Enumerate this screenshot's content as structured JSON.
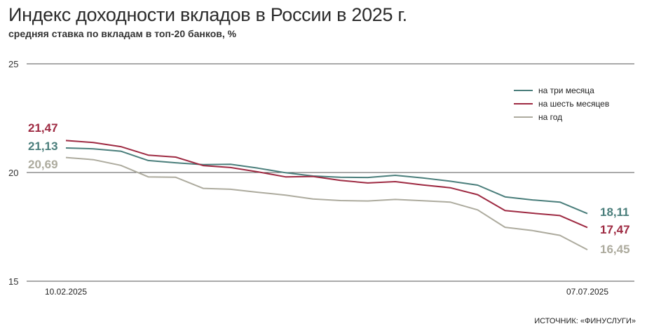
{
  "chart_data": {
    "type": "line",
    "title": "Индекс доходности вкладов в России в 2025 г.",
    "subtitle": "средняя ставка по вкладам в топ-20 банков, %",
    "source": "ИСТОЧНИК: «ФИНУСЛУГИ»",
    "ylim": [
      15,
      25
    ],
    "yticks": [
      "25",
      "20",
      "15"
    ],
    "x_start_label": "10.02.2025",
    "x_end_label": "07.07.2025",
    "legend_position": "top-right",
    "grid": true,
    "series": [
      {
        "name": "на три месяца",
        "color": "#4a7e7b",
        "start_label": "21,13",
        "end_label": "18,11",
        "values": [
          21.13,
          21.09,
          20.98,
          20.55,
          20.45,
          20.36,
          20.38,
          20.2,
          19.99,
          19.84,
          19.78,
          19.77,
          19.87,
          19.75,
          19.6,
          19.42,
          18.88,
          18.74,
          18.64,
          18.11
        ]
      },
      {
        "name": "на шесть месяцев",
        "color": "#9e2a42",
        "start_label": "21,47",
        "end_label": "17,47",
        "values": [
          21.47,
          21.38,
          21.19,
          20.8,
          20.71,
          20.32,
          20.23,
          20.03,
          19.8,
          19.82,
          19.64,
          19.52,
          19.58,
          19.43,
          19.3,
          18.98,
          18.25,
          18.13,
          18.02,
          17.47
        ]
      },
      {
        "name": "на год",
        "color": "#adab9e",
        "start_label": "20,69",
        "end_label": "16,45",
        "values": [
          20.69,
          20.59,
          20.33,
          19.8,
          19.78,
          19.27,
          19.23,
          19.09,
          18.96,
          18.78,
          18.71,
          18.69,
          18.76,
          18.7,
          18.64,
          18.28,
          17.48,
          17.33,
          17.11,
          16.45
        ]
      }
    ]
  }
}
